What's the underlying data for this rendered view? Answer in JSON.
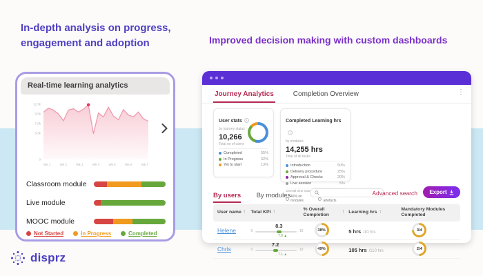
{
  "page": {
    "background_band_color": "#cbe8f4",
    "left_heading": "In-depth analysis on progress, engagement and adoption",
    "right_heading": "Improved decision making with custom dashboards",
    "logo_text": "disprz"
  },
  "colors": {
    "not_started": "#d64541",
    "in_progress": "#f09a1f",
    "completed": "#67a83c",
    "accent_crimson": "#b5274f",
    "window_purple": "#5a2fd6",
    "badge_ring": "#e0a62a",
    "badge_ring_rest": "#e6e6e6",
    "link_blue": "#4a90d9"
  },
  "left_panel": {
    "title": "Real-time learning analytics",
    "modules": [
      {
        "label": "Classroom module",
        "segments": [
          18,
          48,
          34
        ]
      },
      {
        "label": "Live module",
        "segments": [
          10,
          0,
          90
        ]
      },
      {
        "label": "MOOC module",
        "segments": [
          27,
          27,
          46
        ]
      }
    ],
    "legend": [
      {
        "label": "Not Started",
        "color": "#d64541"
      },
      {
        "label": "In Progress",
        "color": "#f09a1f"
      },
      {
        "label": "Completed",
        "color": "#67a83c"
      }
    ]
  },
  "chart_data": {
    "type": "area",
    "title": "Real-time learning analytics",
    "xlabel": "",
    "ylabel": "",
    "x_labels": [
      "Wk 1",
      "Wk 2",
      "Wk 3",
      "Wk 4",
      "Wk 5",
      "Wk 6",
      "Wk 7"
    ],
    "y_labels": [
      {
        "label": "11.5k",
        "value": 11.5
      },
      {
        "label": "9.5k",
        "value": 9.5
      },
      {
        "label": "7.5k",
        "value": 7.5
      },
      {
        "label": "5.5k",
        "value": 5.5
      },
      {
        "label": "0",
        "value": 0
      }
    ],
    "y_max": 12,
    "values": [
      9.8,
      10.6,
      10.2,
      9.4,
      8.0,
      10.2,
      10.5,
      9.8,
      10.4,
      11.3,
      5.3,
      9.6,
      8.8,
      10.8,
      9.0,
      8.2,
      10.3,
      9.2,
      8.8,
      9.8,
      8.4,
      7.9
    ],
    "marker_index": 9,
    "legend_position": "none",
    "grid": false,
    "line_color": "#ef9aae",
    "fill_color": "#f6b8c6",
    "marker_color": "#e8355e"
  },
  "window": {
    "tabs": [
      {
        "label": "Journey Analytics",
        "active": true
      },
      {
        "label": "Completion Overview",
        "active": false
      }
    ],
    "cards": [
      {
        "title": "User stats",
        "subtitle": "by journey status",
        "value": "10,266",
        "caption": "Total no of users",
        "legend": [
          {
            "label": "Completed",
            "pct": "55%",
            "value": 55,
            "color": "#4a90d9"
          },
          {
            "label": "In Progress",
            "pct": "32%",
            "value": 32,
            "color": "#67a83c"
          },
          {
            "label": "Yet to start",
            "pct": "13%",
            "value": 13,
            "color": "#f09a1f"
          }
        ]
      },
      {
        "title": "Completed Learning hrs",
        "subtitle": "by modules",
        "value": "14,255 hrs",
        "caption": "Total of all tasks",
        "legend": [
          {
            "label": "Introduction",
            "pct": "50%",
            "color": "#4a90d9"
          },
          {
            "label": "Delivery procedure",
            "pct": "25%",
            "color": "#67a83c"
          },
          {
            "label": "Approval & Checks",
            "pct": "20%",
            "color": "#8e24aa"
          },
          {
            "label": "Live session",
            "pct": "5%",
            "color": "#9e9e9e"
          }
        ],
        "footer_label": "Overall time was spent:",
        "footer_items": [
          "46% on modules",
          "54% on artefacts"
        ]
      }
    ],
    "toolbar": {
      "tabs": [
        {
          "label": "By users",
          "active": true
        },
        {
          "label": "By modules",
          "active": false
        }
      ],
      "advanced_search": "Advanced search",
      "export_label": "Export"
    },
    "table": {
      "columns": [
        {
          "label": "User name",
          "sortable": true
        },
        {
          "label": "Total KPI",
          "sortable": true
        },
        {
          "label": "% Overall Completion",
          "sortable": true
        },
        {
          "label": "Learning hrs",
          "sortable": true
        },
        {
          "label": "Mandatory Modules Completed",
          "sortable": false
        }
      ],
      "slider_min": "0",
      "slider_max": "10",
      "rows": [
        {
          "name": "Helene",
          "kpi": "8.3",
          "kpi_value": 8.3,
          "kpi_trend": "7.9 ▲",
          "completion": "38%",
          "completion_value": 38,
          "hours": "5 hrs",
          "hours_total": "/10 hrs",
          "hours_value": 50,
          "hours_color": "#f09a1f",
          "modules": "3/4",
          "modules_value": 75
        },
        {
          "name": "Chris",
          "kpi": "7.2",
          "kpi_value": 7.2,
          "kpi_trend": "7.1 ▲",
          "completion": "49%",
          "completion_value": 49,
          "hours": "105 hrs",
          "hours_total": "/110 hrs",
          "hours_value": 95,
          "hours_color": "#67a83c",
          "modules": "2/4",
          "modules_value": 50
        }
      ]
    }
  },
  "icons": {
    "sort": "↑",
    "kebab": "⋮",
    "info": "i"
  }
}
